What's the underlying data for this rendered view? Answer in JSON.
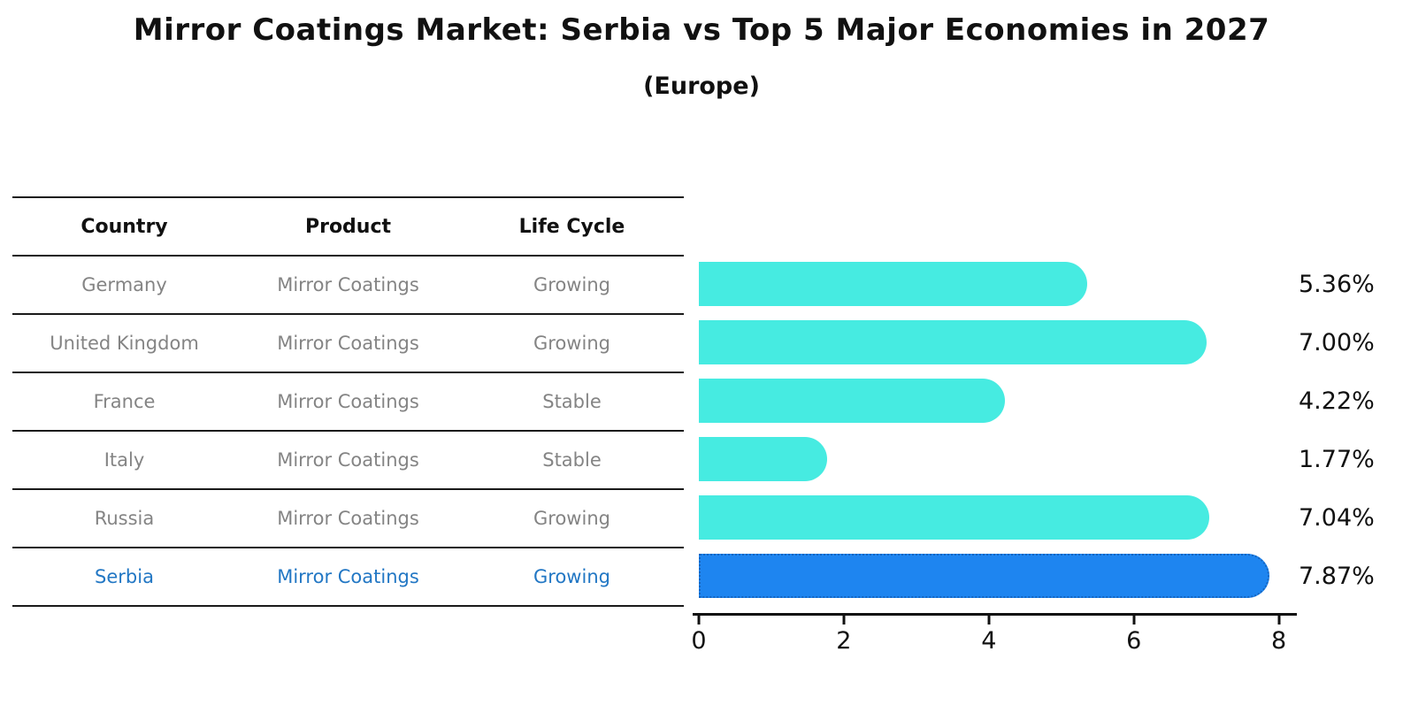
{
  "title": "Mirror Coatings Market: Serbia vs Top 5 Major Economies in 2027",
  "subtitle": "(Europe)",
  "table": {
    "columns": [
      "Country",
      "Product",
      "Life Cycle"
    ],
    "rows": [
      {
        "country": "Germany",
        "product": "Mirror Coatings",
        "life_cycle": "Growing",
        "value": 5.36,
        "value_label": "5.36%",
        "highlight": false
      },
      {
        "country": "United Kingdom",
        "product": "Mirror Coatings",
        "life_cycle": "Growing",
        "value": 7.0,
        "value_label": "7.00%",
        "highlight": false
      },
      {
        "country": "France",
        "product": "Mirror Coatings",
        "life_cycle": "Stable",
        "value": 4.22,
        "value_label": "4.22%",
        "highlight": false
      },
      {
        "country": "Italy",
        "product": "Mirror Coatings",
        "life_cycle": "Stable",
        "value": 1.77,
        "value_label": "1.77%",
        "highlight": false
      },
      {
        "country": "Russia",
        "product": "Mirror Coatings",
        "life_cycle": "Growing",
        "value": 7.04,
        "value_label": "7.04%",
        "highlight": false
      },
      {
        "country": "Serbia",
        "product": "Mirror Coatings",
        "life_cycle": "Growing",
        "value": 7.87,
        "value_label": "7.87%",
        "highlight": true
      }
    ]
  },
  "chart_data": {
    "type": "bar",
    "orientation": "horizontal",
    "title": "Mirror Coatings Market: Serbia vs Top 5 Major Economies in 2027",
    "subtitle": "(Europe)",
    "categories": [
      "Germany",
      "United Kingdom",
      "France",
      "Italy",
      "Russia",
      "Serbia"
    ],
    "values": [
      5.36,
      7.0,
      4.22,
      1.77,
      7.04,
      7.87
    ],
    "value_labels": [
      "5.36%",
      "7.00%",
      "4.22%",
      "1.77%",
      "7.04%",
      "7.87%"
    ],
    "xlabel": "",
    "ylabel": "",
    "xlim": [
      0,
      8.2
    ],
    "xticks": [
      0,
      2,
      4,
      6,
      8
    ],
    "highlighted_category": "Serbia",
    "legend": false,
    "grid": false
  },
  "colors": {
    "bar": "#46EBE1",
    "highlight_bar": "#1E85F0",
    "highlight_bar_border": "#1565C0",
    "row_text": "#848484",
    "highlight_text": "#2277C4",
    "heading_text": "#111111",
    "axis": "#111111"
  }
}
